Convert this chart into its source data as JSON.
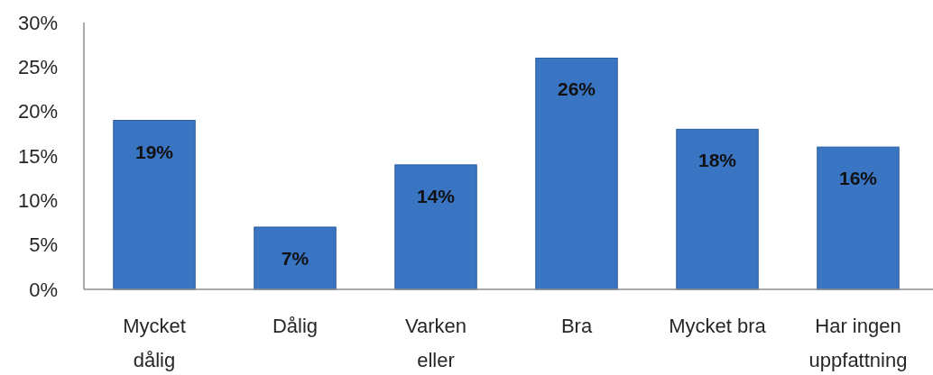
{
  "chart_data": {
    "type": "bar",
    "categories": [
      "Mycket\ndålig",
      "Dålig",
      "Varken\neller",
      "Bra",
      "Mycket bra",
      "Har ingen\nuppfattning"
    ],
    "values": [
      19,
      7,
      14,
      26,
      18,
      16
    ],
    "value_labels": [
      "19%",
      "7%",
      "14%",
      "26%",
      "18%",
      "16%"
    ],
    "color": "#3a75c4",
    "ylim": [
      0,
      30
    ],
    "yticks": [
      {
        "value": 0,
        "label": "0%"
      },
      {
        "value": 5,
        "label": "5%"
      },
      {
        "value": 10,
        "label": "10%"
      },
      {
        "value": 15,
        "label": "15%"
      },
      {
        "value": 20,
        "label": "20%"
      },
      {
        "value": 25,
        "label": "25%"
      },
      {
        "value": 30,
        "label": "30%"
      }
    ]
  }
}
